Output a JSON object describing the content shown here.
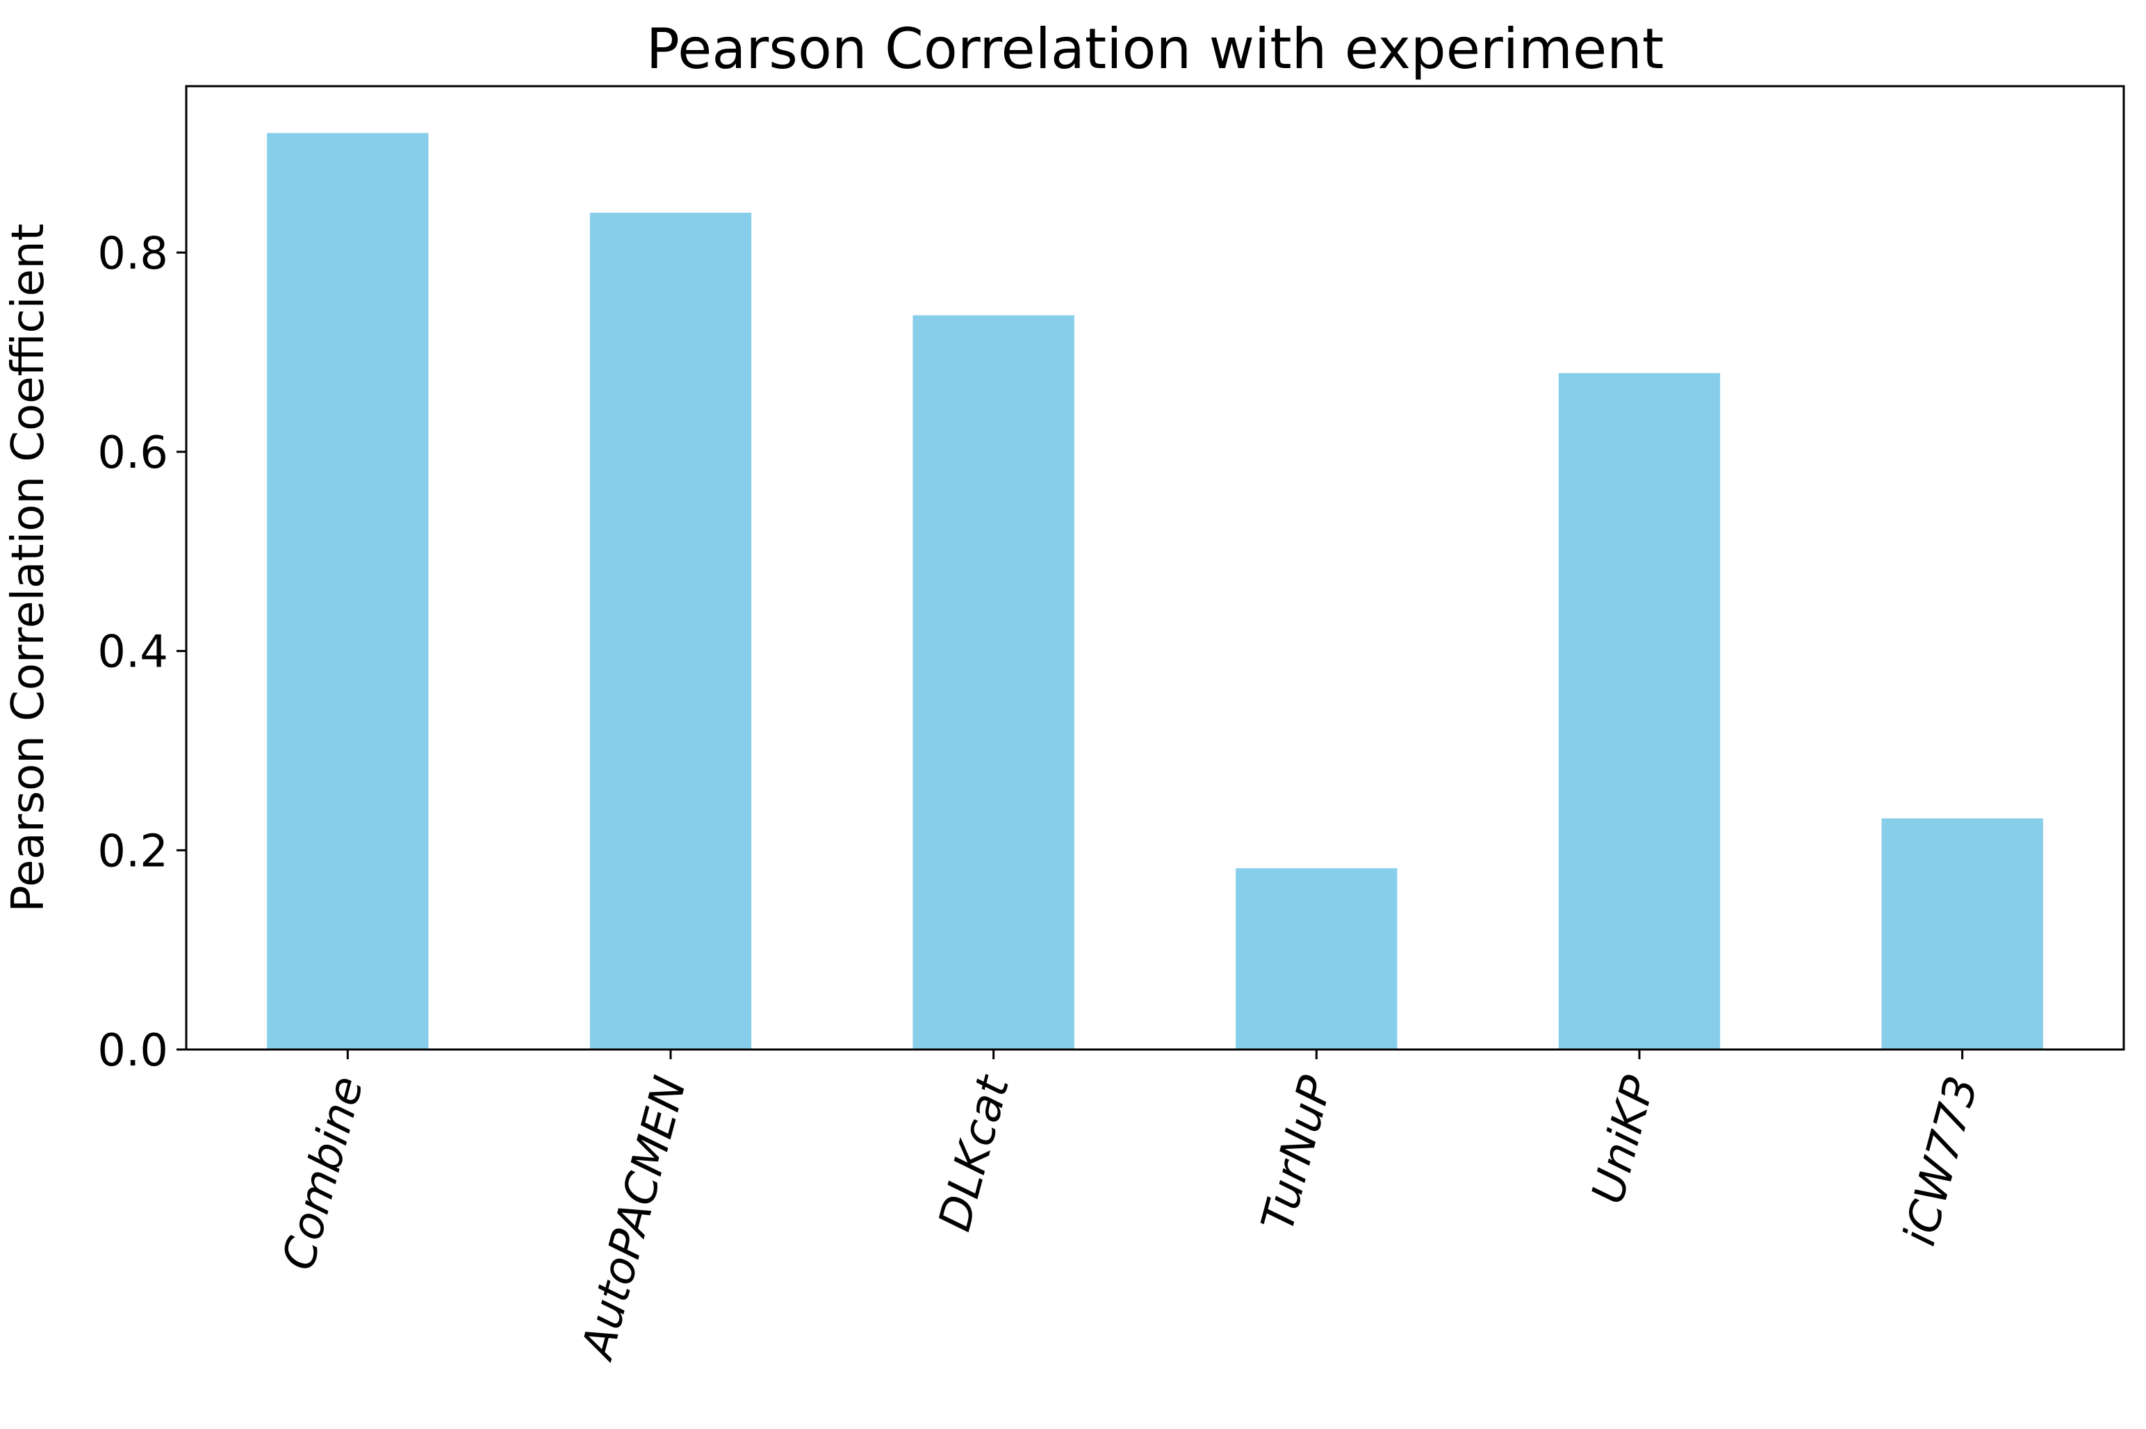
{
  "chart_data": {
    "type": "bar",
    "title": "Pearson Correlation with experiment",
    "xlabel": "",
    "ylabel": "Pearson Correlation Coefficient",
    "categories": [
      "Combine",
      "AutoPACMEN",
      "DLKcat",
      "TurNuP",
      "UniKP",
      "iCW773"
    ],
    "values": [
      0.92,
      0.84,
      0.737,
      0.182,
      0.679,
      0.232
    ],
    "ylim": [
      0,
      0.967
    ],
    "yticks": [
      0.0,
      0.2,
      0.4,
      0.6,
      0.8
    ],
    "ytick_labels": [
      "0.0",
      "0.2",
      "0.4",
      "0.6",
      "0.8"
    ],
    "bar_color": "#87ceeb",
    "grid": false,
    "legend": "none"
  }
}
